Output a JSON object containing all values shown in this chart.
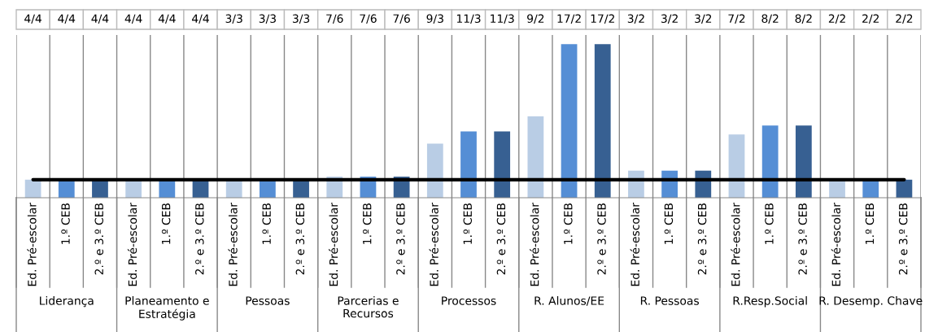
{
  "chart_data": {
    "type": "bar",
    "categories": [
      "Ed. Pré-escolar",
      "1.º CEB",
      "2.º e 3.º CEB",
      "Ed. Pré-escolar",
      "1.º CEB",
      "2.º e 3.º CEB",
      "Ed. Pré-escolar",
      "1.º CEB",
      "2.º e 3.º CEB",
      "Ed. Pré-escolar",
      "1.º CEB",
      "2.º e 3.º CEB",
      "Ed. Pré-escolar",
      "1.º CEB",
      "2.º e 3.º CEB",
      "Ed. Pré-escolar",
      "1.º CEB",
      "2.º e 3.º CEB",
      "Ed. Pré-escolar",
      "1.º CEB",
      "2.º e 3.º CEB",
      "Ed. Pré-escolar",
      "1.º CEB",
      "2.º e 3.º CEB",
      "Ed. Pré-escolar",
      "1.º CEB",
      "2.º e 3.º CEB"
    ],
    "values": [
      1,
      1,
      1,
      1,
      1,
      1,
      1,
      1,
      1,
      1.167,
      1.167,
      1.167,
      3,
      3.667,
      3.667,
      4.5,
      8.5,
      8.5,
      1.5,
      1.5,
      1.5,
      3.5,
      4,
      4,
      1,
      1,
      1
    ],
    "value_labels": [
      "4/4",
      "4/4",
      "4/4",
      "4/4",
      "4/4",
      "4/4",
      "3/3",
      "3/3",
      "3/3",
      "7/6",
      "7/6",
      "7/6",
      "9/3",
      "11/3",
      "11/3",
      "9/2",
      "17/2",
      "17/2",
      "3/2",
      "3/2",
      "3/2",
      "7/2",
      "8/2",
      "8/2",
      "2/2",
      "2/2",
      "2/2"
    ],
    "colors": [
      "#b9cde5",
      "#558ed5",
      "#376092",
      "#b9cde5",
      "#558ed5",
      "#376092",
      "#b9cde5",
      "#558ed5",
      "#376092",
      "#b9cde5",
      "#558ed5",
      "#376092",
      "#b9cde5",
      "#558ed5",
      "#376092",
      "#b9cde5",
      "#558ed5",
      "#376092",
      "#b9cde5",
      "#558ed5",
      "#376092",
      "#b9cde5",
      "#558ed5",
      "#376092",
      "#b9cde5",
      "#558ed5",
      "#376092"
    ],
    "annotations": [
      "Liderança",
      "Planeamento e Estratégia",
      "Pessoas",
      "Parcerias e Recursos",
      "Processos",
      "R. Alunos/EE",
      "R. Pessoas",
      "R.Resp.Social",
      "R. Desemp. Chave"
    ],
    "ref_lines": [
      {
        "axis": "y",
        "value": 1,
        "color": "#000000"
      }
    ],
    "grid": "x"
  }
}
